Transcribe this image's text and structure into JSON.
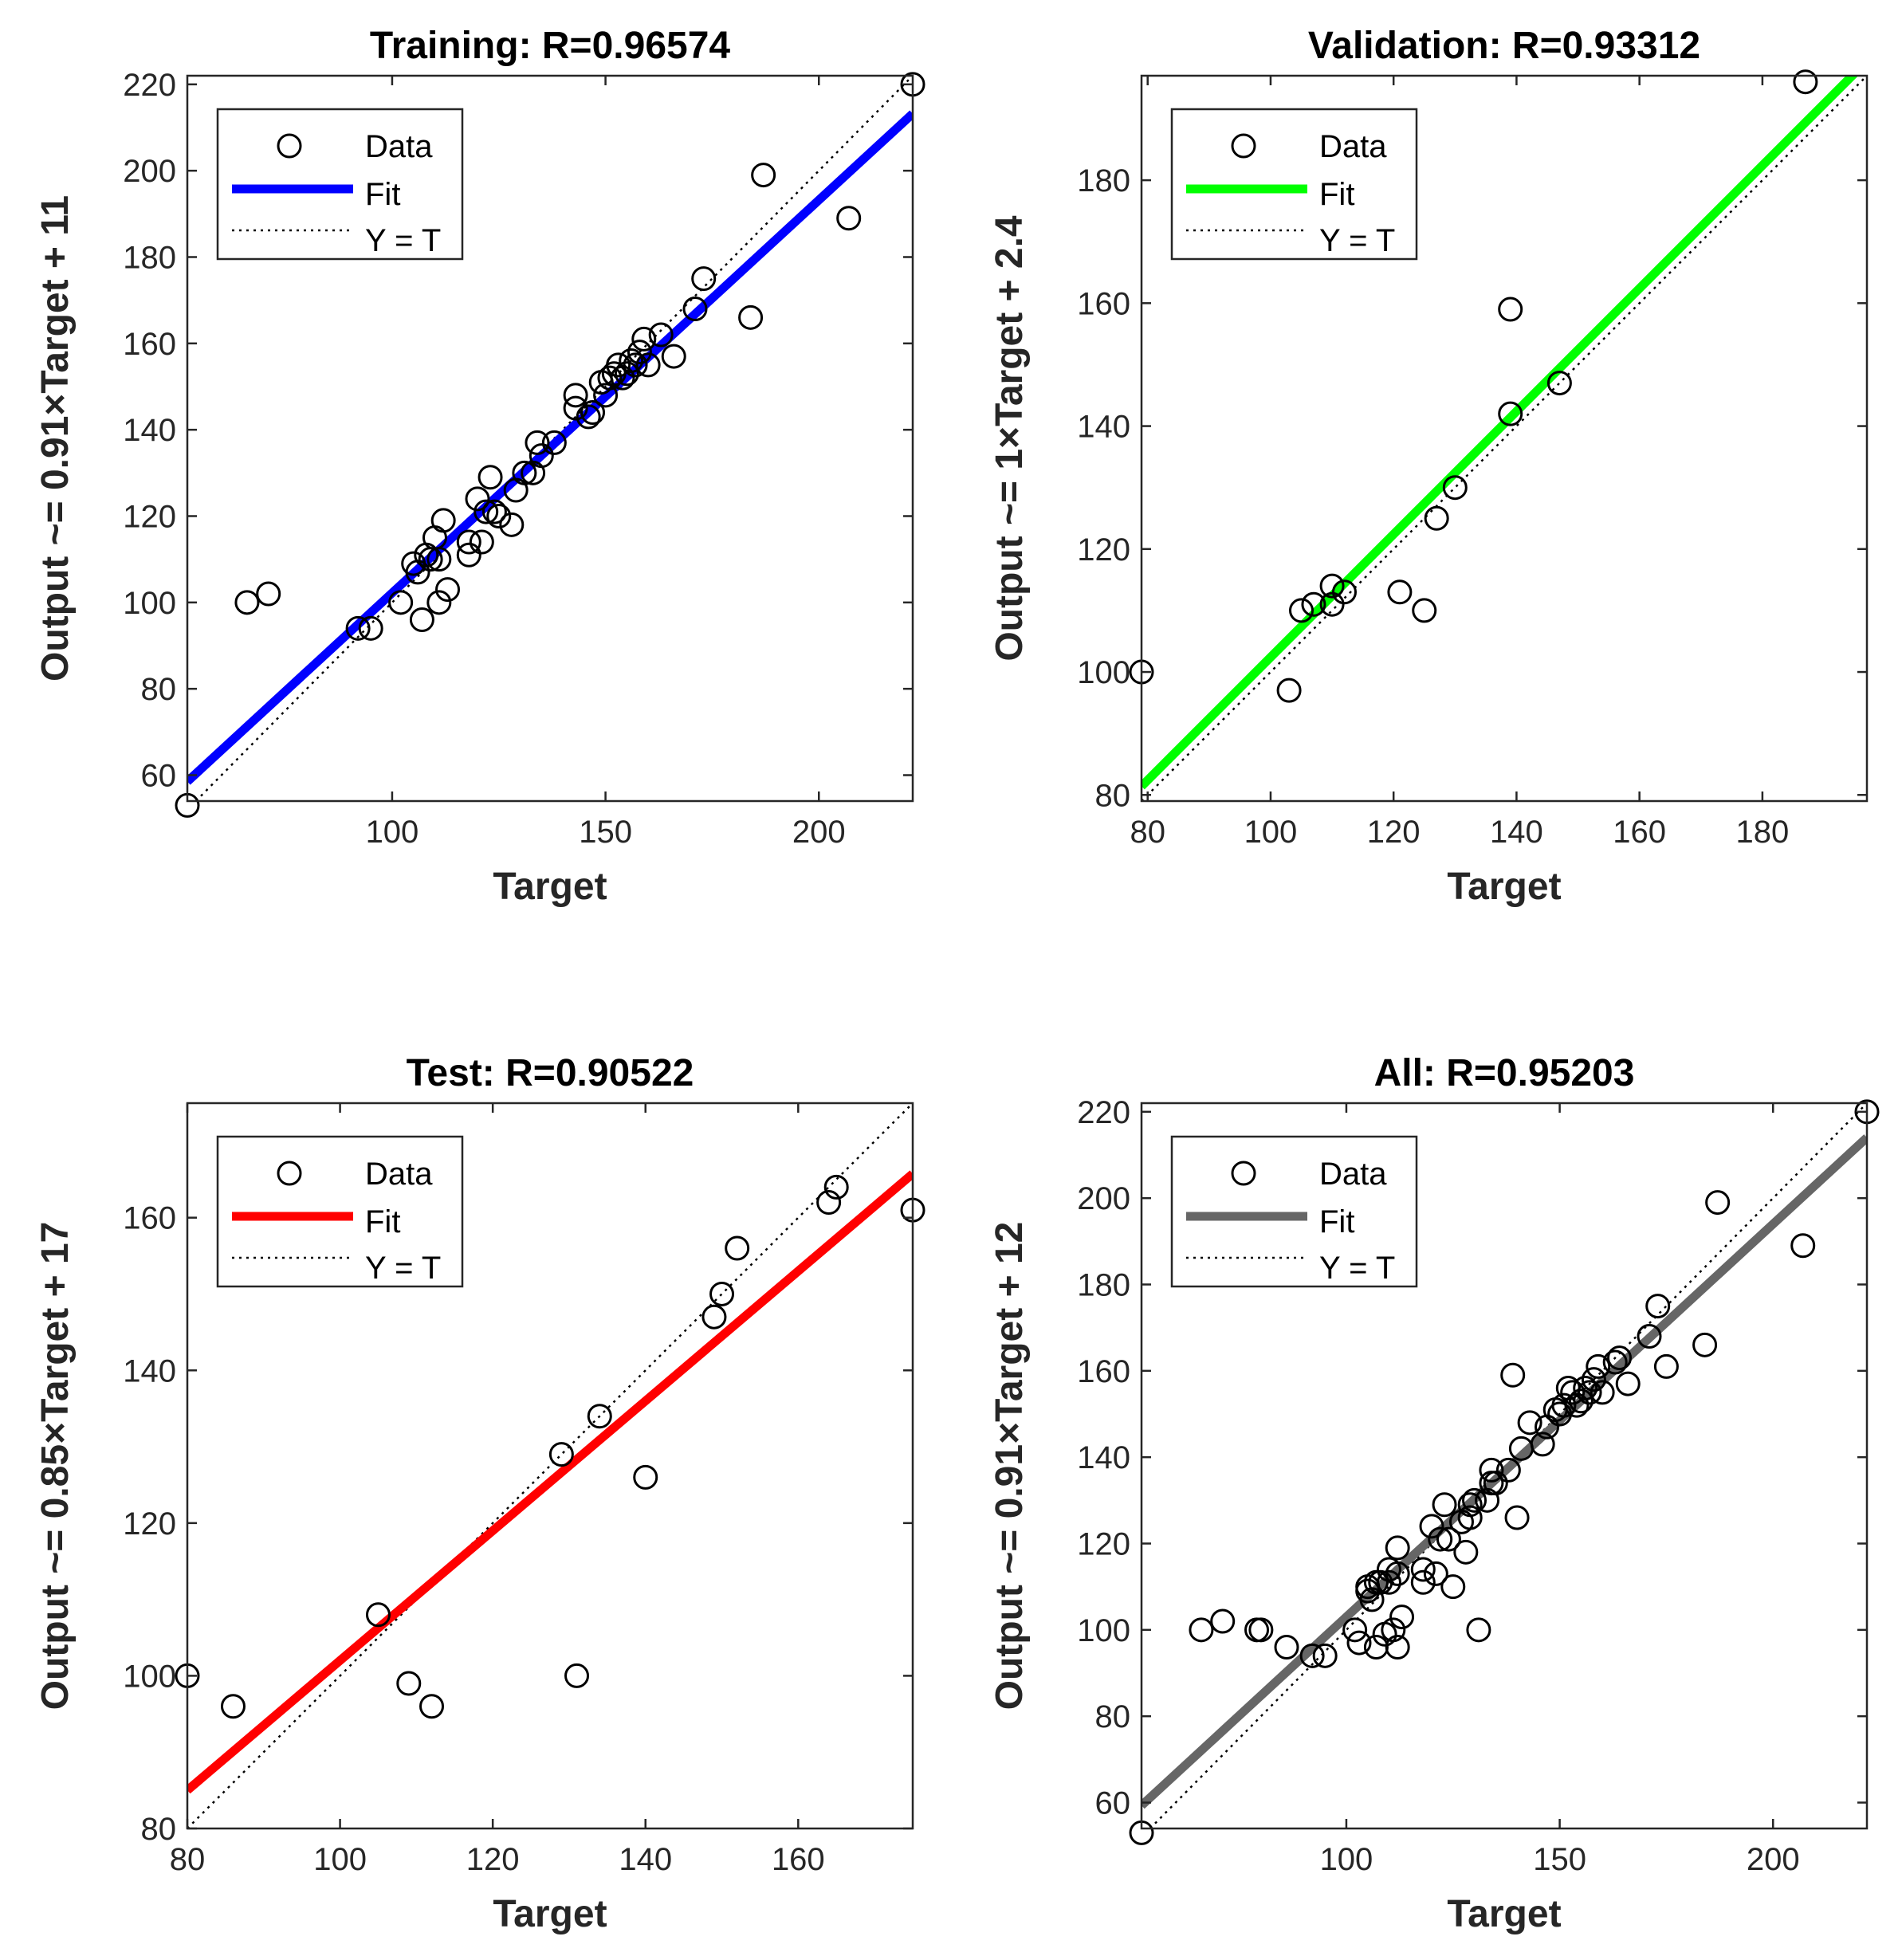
{
  "chart_data": [
    {
      "type": "scatter",
      "title": "Training: R=0.96574",
      "xlabel": "Target",
      "ylabel": "Output ~= 0.91×Target + 11",
      "xlim": [
        52,
        222
      ],
      "ylim": [
        54,
        222
      ],
      "xticks": [
        100,
        150,
        200
      ],
      "yticks": [
        60,
        80,
        100,
        120,
        140,
        160,
        180,
        200,
        220
      ],
      "fit": {
        "slope": 0.91,
        "intercept": 11.2,
        "color": "#0000ff"
      },
      "legend": {
        "position": "top-left",
        "entries": [
          "Data",
          "Fit",
          "Y = T"
        ]
      },
      "points": [
        [
          52,
          53
        ],
        [
          66,
          100
        ],
        [
          71,
          102
        ],
        [
          92,
          94
        ],
        [
          95,
          94
        ],
        [
          102,
          100
        ],
        [
          105,
          109
        ],
        [
          106,
          107
        ],
        [
          107,
          96
        ],
        [
          108,
          111
        ],
        [
          109,
          110
        ],
        [
          110,
          115
        ],
        [
          111,
          110
        ],
        [
          111,
          100
        ],
        [
          112,
          119
        ],
        [
          113,
          103
        ],
        [
          118,
          111
        ],
        [
          118,
          114
        ],
        [
          120,
          124
        ],
        [
          121,
          114
        ],
        [
          122,
          121
        ],
        [
          123,
          129
        ],
        [
          124,
          121
        ],
        [
          125,
          120
        ],
        [
          128,
          118
        ],
        [
          129,
          126
        ],
        [
          131,
          130
        ],
        [
          133,
          130
        ],
        [
          134,
          137
        ],
        [
          135,
          134
        ],
        [
          138,
          137
        ],
        [
          143,
          145
        ],
        [
          143,
          148
        ],
        [
          146,
          143
        ],
        [
          147,
          144
        ],
        [
          149,
          151
        ],
        [
          150,
          148
        ],
        [
          151,
          152
        ],
        [
          152,
          153
        ],
        [
          153,
          155
        ],
        [
          154,
          152
        ],
        [
          155,
          153
        ],
        [
          156,
          156
        ],
        [
          157,
          155
        ],
        [
          158,
          158
        ],
        [
          159,
          161
        ],
        [
          160,
          155
        ],
        [
          163,
          162
        ],
        [
          166,
          157
        ],
        [
          171,
          168
        ],
        [
          173,
          175
        ],
        [
          184,
          166
        ],
        [
          187,
          199
        ],
        [
          207,
          189
        ],
        [
          222,
          220
        ]
      ]
    },
    {
      "type": "scatter",
      "title": "Validation: R=0.93312",
      "xlabel": "Target",
      "ylabel": "Output ~= 1×Target + 2.4",
      "xlim": [
        79,
        197
      ],
      "ylim": [
        79,
        197
      ],
      "xticks": [
        80,
        100,
        120,
        140,
        160,
        180
      ],
      "yticks": [
        80,
        100,
        120,
        140,
        160,
        180
      ],
      "fit": {
        "slope": 1.0,
        "intercept": 2.4,
        "color": "#00ff00"
      },
      "legend": {
        "position": "top-left",
        "entries": [
          "Data",
          "Fit",
          "Y = T"
        ]
      },
      "points": [
        [
          79,
          100
        ],
        [
          103,
          97
        ],
        [
          105,
          110
        ],
        [
          107,
          111
        ],
        [
          110,
          114
        ],
        [
          110,
          111
        ],
        [
          112,
          113
        ],
        [
          121,
          113
        ],
        [
          125,
          110
        ],
        [
          127,
          125
        ],
        [
          130,
          130
        ],
        [
          139,
          159
        ],
        [
          139,
          142
        ],
        [
          147,
          147
        ],
        [
          187,
          196
        ]
      ]
    },
    {
      "type": "scatter",
      "title": "Test: R=0.90522",
      "xlabel": "Target",
      "ylabel": "Output ~= 0.85×Target + 17",
      "xlim": [
        80,
        175
      ],
      "ylim": [
        80,
        175
      ],
      "xticks": [
        80,
        100,
        120,
        140,
        160
      ],
      "yticks": [
        80,
        100,
        120,
        140,
        160
      ],
      "fit": {
        "slope": 0.85,
        "intercept": 17,
        "color": "#ff0000"
      },
      "legend": {
        "position": "top-left",
        "entries": [
          "Data",
          "Fit",
          "Y = T"
        ]
      },
      "points": [
        [
          80,
          100
        ],
        [
          86,
          96
        ],
        [
          105,
          108
        ],
        [
          109,
          99
        ],
        [
          112,
          96
        ],
        [
          129,
          129
        ],
        [
          131,
          100
        ],
        [
          134,
          134
        ],
        [
          140,
          126
        ],
        [
          149,
          147
        ],
        [
          150,
          150
        ],
        [
          152,
          156
        ],
        [
          164,
          162
        ],
        [
          165,
          164
        ],
        [
          175,
          161
        ]
      ]
    },
    {
      "type": "scatter",
      "title": "All: R=0.95203",
      "xlabel": "Target",
      "ylabel": "Output ~= 0.91×Target + 12",
      "xlim": [
        52,
        222
      ],
      "ylim": [
        54,
        222
      ],
      "xticks": [
        100,
        150,
        200
      ],
      "yticks": [
        60,
        80,
        100,
        120,
        140,
        160,
        180,
        200,
        220
      ],
      "fit": {
        "slope": 0.91,
        "intercept": 12,
        "color": "#666666"
      },
      "legend": {
        "position": "top-left",
        "entries": [
          "Data",
          "Fit",
          "Y = T"
        ]
      },
      "points": [
        [
          52,
          53
        ],
        [
          66,
          100
        ],
        [
          71,
          102
        ],
        [
          79,
          100
        ],
        [
          80,
          100
        ],
        [
          86,
          96
        ],
        [
          92,
          94
        ],
        [
          95,
          94
        ],
        [
          102,
          100
        ],
        [
          103,
          97
        ],
        [
          105,
          109
        ],
        [
          105,
          110
        ],
        [
          106,
          107
        ],
        [
          107,
          96
        ],
        [
          107,
          111
        ],
        [
          108,
          111
        ],
        [
          109,
          99
        ],
        [
          110,
          114
        ],
        [
          110,
          111
        ],
        [
          111,
          100
        ],
        [
          112,
          119
        ],
        [
          112,
          96
        ],
        [
          112,
          113
        ],
        [
          113,
          103
        ],
        [
          118,
          111
        ],
        [
          118,
          114
        ],
        [
          120,
          124
        ],
        [
          121,
          113
        ],
        [
          122,
          121
        ],
        [
          123,
          129
        ],
        [
          124,
          121
        ],
        [
          125,
          110
        ],
        [
          127,
          125
        ],
        [
          128,
          118
        ],
        [
          129,
          126
        ],
        [
          129,
          129
        ],
        [
          130,
          130
        ],
        [
          131,
          100
        ],
        [
          133,
          130
        ],
        [
          134,
          134
        ],
        [
          134,
          137
        ],
        [
          135,
          134
        ],
        [
          138,
          137
        ],
        [
          139,
          159
        ],
        [
          140,
          126
        ],
        [
          141,
          142
        ],
        [
          143,
          148
        ],
        [
          146,
          143
        ],
        [
          147,
          147
        ],
        [
          149,
          151
        ],
        [
          150,
          150
        ],
        [
          151,
          152
        ],
        [
          152,
          156
        ],
        [
          153,
          155
        ],
        [
          154,
          152
        ],
        [
          155,
          153
        ],
        [
          156,
          156
        ],
        [
          157,
          155
        ],
        [
          158,
          158
        ],
        [
          159,
          161
        ],
        [
          160,
          155
        ],
        [
          163,
          162
        ],
        [
          164,
          163
        ],
        [
          166,
          157
        ],
        [
          171,
          168
        ],
        [
          173,
          175
        ],
        [
          175,
          161
        ],
        [
          184,
          166
        ],
        [
          187,
          199
        ],
        [
          207,
          189
        ],
        [
          222,
          220
        ]
      ]
    }
  ]
}
